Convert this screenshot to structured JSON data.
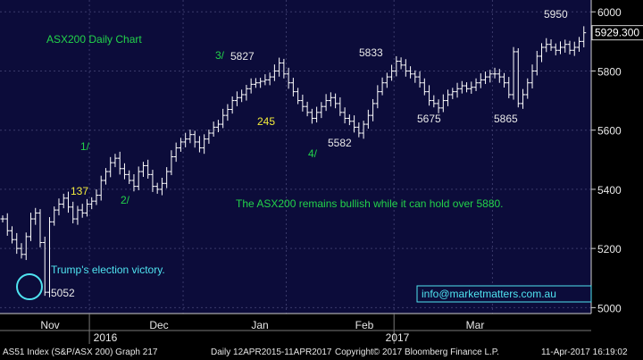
{
  "chart_data": {
    "type": "ohlc",
    "title": "ASX200 Daily Chart",
    "ylim": [
      4980,
      6040
    ],
    "yticks": [
      5000,
      5200,
      5400,
      5600,
      5800,
      6000
    ],
    "ytick_labels": [
      "5000",
      "5200",
      "5400",
      "5600",
      "5800",
      "6000"
    ],
    "xticks": [
      "Nov",
      "Dec",
      "Jan",
      "Feb",
      "Mar"
    ],
    "years": [
      "2016",
      "2017"
    ],
    "last_price": 5929.3,
    "last_price_label": "5929.300",
    "colors": {
      "background": "#000000",
      "plot": "#0c0c3a",
      "bars": "#ffffff",
      "title": "#22d34a",
      "wave_label": "#22d34a",
      "count_label": "#f2ea3a",
      "commentary": "#22d34a",
      "note": "#4fe3f0",
      "axis_text": "#e8e8e8"
    },
    "closes": [
      5300,
      5260,
      5230,
      5200,
      5180,
      5240,
      5300,
      5320,
      5220,
      5052,
      5290,
      5330,
      5350,
      5370,
      5340,
      5300,
      5330,
      5320,
      5350,
      5360,
      5380,
      5430,
      5460,
      5490,
      5505,
      5470,
      5450,
      5430,
      5410,
      5460,
      5480,
      5450,
      5410,
      5400,
      5420,
      5460,
      5510,
      5540,
      5560,
      5570,
      5585,
      5560,
      5540,
      5570,
      5590,
      5610,
      5620,
      5650,
      5670,
      5700,
      5710,
      5720,
      5740,
      5755,
      5760,
      5765,
      5770,
      5780,
      5800,
      5827,
      5790,
      5760,
      5730,
      5700,
      5680,
      5660,
      5640,
      5660,
      5680,
      5700,
      5710,
      5690,
      5660,
      5640,
      5630,
      5610,
      5590,
      5620,
      5650,
      5690,
      5730,
      5760,
      5780,
      5800,
      5833,
      5820,
      5800,
      5790,
      5780,
      5760,
      5730,
      5700,
      5690,
      5675,
      5700,
      5720,
      5730,
      5740,
      5750,
      5740,
      5745,
      5760,
      5770,
      5780,
      5790,
      5790,
      5780,
      5760,
      5720,
      5865,
      5690,
      5720,
      5760,
      5800,
      5850,
      5880,
      5890,
      5880,
      5870,
      5880,
      5890,
      5870,
      5880,
      5900,
      5929.3
    ],
    "annotations": [
      {
        "text": "5052",
        "value": 5052,
        "kind": "price"
      },
      {
        "text": "1/",
        "kind": "wave"
      },
      {
        "text": "137",
        "kind": "count"
      },
      {
        "text": "2/",
        "kind": "wave"
      },
      {
        "text": "3/",
        "kind": "wave"
      },
      {
        "text": "5827",
        "value": 5827,
        "kind": "price"
      },
      {
        "text": "245",
        "kind": "count"
      },
      {
        "text": "4/",
        "kind": "wave"
      },
      {
        "text": "5582",
        "value": 5582,
        "kind": "price"
      },
      {
        "text": "5833",
        "value": 5833,
        "kind": "price"
      },
      {
        "text": "5675",
        "value": 5675,
        "kind": "price"
      },
      {
        "text": "5865",
        "value": 5865,
        "kind": "price"
      },
      {
        "text": "5950",
        "value": 5950,
        "kind": "price"
      }
    ],
    "commentary": "The ASX200 remains bullish while it can hold over 5880.",
    "note": "Trump's election victory.",
    "website": "info@marketmatters.com.au"
  },
  "footer": {
    "left": "AS51 Index (S&P/ASX 200) Graph 217",
    "range": "Daily 12APR2015-11APR2017",
    "copyright": "Copyright© 2017 Bloomberg Finance L.P.",
    "timestamp": "11-Apr-2017 16:19:02"
  }
}
